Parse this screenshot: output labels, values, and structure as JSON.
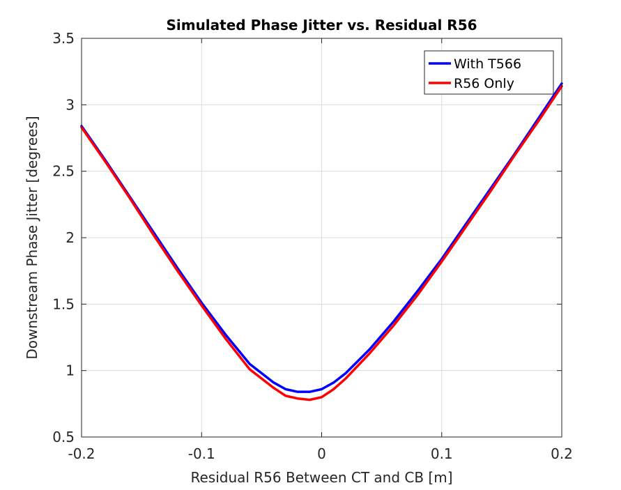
{
  "chart_data": {
    "type": "line",
    "title": "Simulated Phase Jitter vs. Residual R56",
    "xlabel": "Residual R56 Between CT and CB [m]",
    "ylabel": "Downstream Phase Jitter [degrees]",
    "xlim": [
      -0.2,
      0.2
    ],
    "ylim": [
      0.5,
      3.5
    ],
    "xticks": [
      -0.2,
      -0.1,
      0,
      0.1,
      0.2
    ],
    "xtick_labels": [
      "-0.2",
      "-0.1",
      "0",
      "0.1",
      "0.2"
    ],
    "yticks": [
      0.5,
      1,
      1.5,
      2,
      2.5,
      3,
      3.5
    ],
    "ytick_labels": [
      "0.5",
      "1",
      "1.5",
      "2",
      "2.5",
      "3",
      "3.5"
    ],
    "grid": true,
    "legend_position": "top-right",
    "series": [
      {
        "name": "With T566",
        "color": "#0000ff",
        "x": [
          -0.2,
          -0.18,
          -0.16,
          -0.14,
          -0.12,
          -0.1,
          -0.08,
          -0.06,
          -0.04,
          -0.03,
          -0.02,
          -0.01,
          0,
          0.01,
          0.02,
          0.04,
          0.06,
          0.08,
          0.1,
          0.12,
          0.14,
          0.16,
          0.18,
          0.2
        ],
        "y": [
          2.84,
          2.58,
          2.31,
          2.04,
          1.77,
          1.51,
          1.27,
          1.05,
          0.91,
          0.86,
          0.84,
          0.84,
          0.86,
          0.91,
          0.98,
          1.16,
          1.37,
          1.6,
          1.84,
          2.1,
          2.36,
          2.62,
          2.89,
          3.16
        ]
      },
      {
        "name": "R56 Only",
        "color": "#ff0000",
        "x": [
          -0.2,
          -0.18,
          -0.16,
          -0.14,
          -0.12,
          -0.1,
          -0.08,
          -0.06,
          -0.04,
          -0.03,
          -0.02,
          -0.01,
          0,
          0.01,
          0.02,
          0.04,
          0.06,
          0.08,
          0.1,
          0.12,
          0.14,
          0.16,
          0.18,
          0.2
        ],
        "y": [
          2.83,
          2.57,
          2.3,
          2.02,
          1.75,
          1.49,
          1.24,
          1.01,
          0.87,
          0.81,
          0.79,
          0.78,
          0.8,
          0.86,
          0.94,
          1.13,
          1.34,
          1.57,
          1.82,
          2.08,
          2.34,
          2.61,
          2.87,
          3.14
        ]
      }
    ]
  }
}
